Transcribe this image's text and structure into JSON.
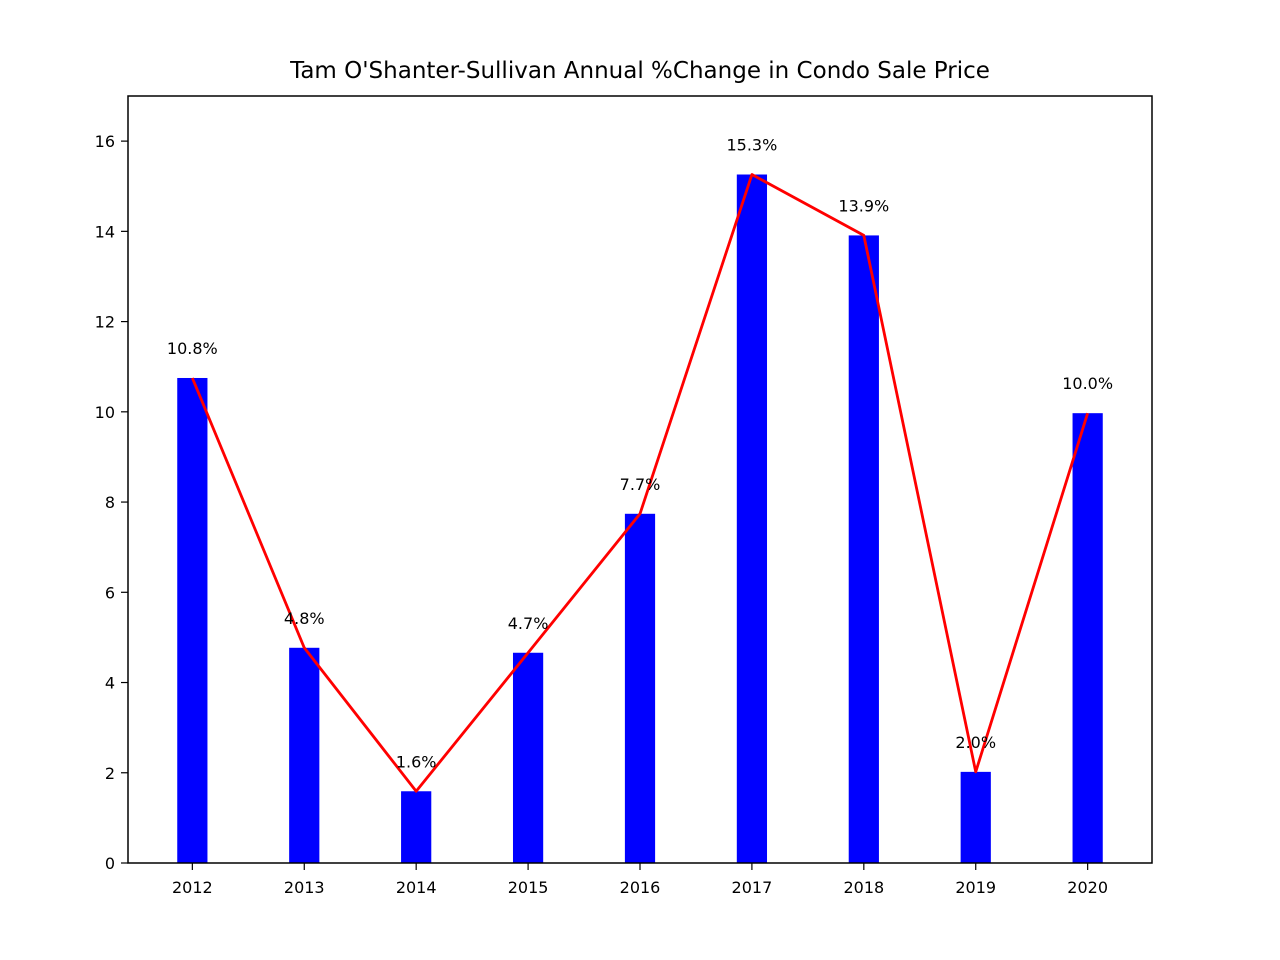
{
  "chart_data": {
    "type": "bar",
    "title": "Tam O'Shanter-Sullivan Annual %Change in Condo Sale Price",
    "xlabel": "",
    "ylabel": "",
    "categories": [
      "2012",
      "2013",
      "2014",
      "2015",
      "2016",
      "2017",
      "2018",
      "2019",
      "2020"
    ],
    "series": [
      {
        "values": [
          10.75,
          4.77,
          1.59,
          4.66,
          7.74,
          15.26,
          13.91,
          2.02,
          9.97
        ],
        "labels": [
          "10.8%",
          "4.8%",
          "1.6%",
          "4.7%",
          "7.7%",
          "15.3%",
          "13.9%",
          "2.0%",
          "10.0%"
        ],
        "bar_color": "#0000ff",
        "line_color": "#ff0000",
        "overlay_line": true
      }
    ],
    "ylim": [
      0,
      17
    ],
    "yticks": [
      0,
      2,
      4,
      6,
      8,
      10,
      12,
      14,
      16
    ],
    "grid": false,
    "legend": "none"
  }
}
